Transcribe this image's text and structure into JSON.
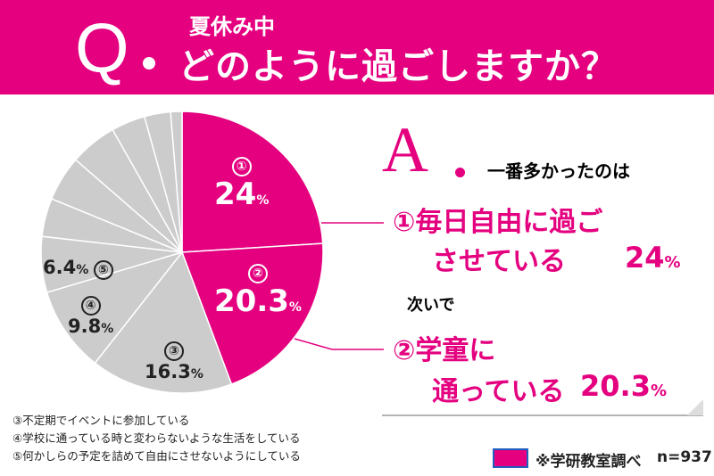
{
  "header": {
    "q": "Q",
    "sub": "夏休み中",
    "title": "どのように過ごしますか？"
  },
  "answer": {
    "a": "A",
    "intro": "一番多かったのは",
    "first_num": "①",
    "first_line1": "毎日自由に過ご",
    "first_line2": "させている",
    "first_pct": "24",
    "next": "次いで",
    "second_num": "②",
    "second_line1": "学童に",
    "second_line2": "通っている",
    "second_pct": "20.3",
    "pct_sign": "%"
  },
  "legend": [
    "③不定期でイベントに参加している",
    "④学校に通っている時と変わらないような生活をしている",
    "⑤何かしらの予定を詰めて自由にさせないようにしている"
  ],
  "footer": {
    "source": "※学研教室調べ",
    "n": "n=937"
  },
  "colors": {
    "accent": "#e4007f",
    "gray": "#cccccc"
  },
  "chart_data": {
    "type": "pie",
    "start": "top",
    "direction": "clockwise",
    "slices": [
      {
        "label": "①",
        "value": 24,
        "color": "#e4007f",
        "display": "24"
      },
      {
        "label": "②",
        "value": 20.3,
        "color": "#e4007f",
        "display": "20.3"
      },
      {
        "label": "③",
        "value": 16.3,
        "color": "#cccccc",
        "display": "16.3"
      },
      {
        "label": "④",
        "value": 9.8,
        "color": "#cccccc",
        "display": "9.8"
      },
      {
        "label": "⑤",
        "value": 6.4,
        "color": "#cccccc",
        "display": "6.4"
      },
      {
        "label": "",
        "value": 4.4,
        "color": "#cccccc"
      },
      {
        "label": "",
        "value": 5.2,
        "color": "#cccccc"
      },
      {
        "label": "",
        "value": 5.4,
        "color": "#cccccc"
      },
      {
        "label": "",
        "value": 3.9,
        "color": "#cccccc"
      },
      {
        "label": "",
        "value": 3.0,
        "color": "#cccccc"
      },
      {
        "label": "",
        "value": 1.3,
        "color": "#cccccc"
      }
    ]
  }
}
